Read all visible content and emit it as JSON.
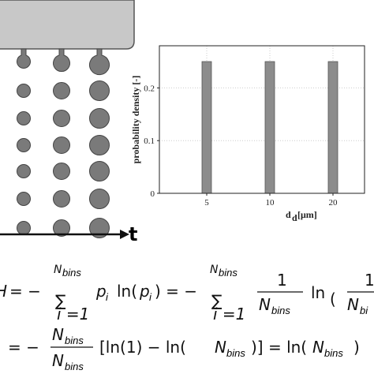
{
  "chart_data": {
    "type": "bar",
    "categories": [
      "5",
      "10",
      "20"
    ],
    "values": [
      0.25,
      0.25,
      0.25
    ],
    "color": "#8c8c8c",
    "ylim": [
      0,
      0.28
    ],
    "yticks": [
      0,
      0.1,
      0.2
    ],
    "grid": true,
    "y_label": "probability density [-]",
    "x_label": "d",
    "x_label_sub": "d",
    "x_label_unit": "[μm]"
  },
  "diagram": {
    "axis_label": "t"
  },
  "equations": {
    "pieces": [
      "H",
      "= −",
      "N",
      "bins",
      "∑",
      "i =1",
      "p",
      "i",
      "ln(",
      "p",
      "i",
      ") = −",
      "N",
      "bins",
      "∑",
      "i =1",
      "1",
      "N",
      "bins",
      "ln",
      "(",
      "1",
      "N",
      "bi",
      "= −",
      "N",
      "bins",
      "N",
      "bins",
      "[ln(1) − ln(",
      "N",
      "bins",
      ")] = ln(",
      "N",
      "bins",
      ")"
    ]
  }
}
